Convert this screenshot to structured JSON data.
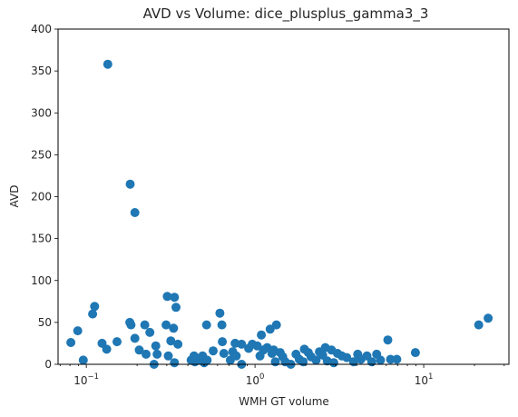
{
  "chart_data": {
    "type": "scatter",
    "title": "AVD vs Volume: dice_plusplus_gamma3_3",
    "xlabel": "WMH GT volume",
    "ylabel": "AVD",
    "xscale": "log",
    "xlim": [
      0.068,
      32
    ],
    "ylim": [
      0,
      400
    ],
    "grid": false,
    "legend": "none",
    "marker_color": "#1f77b4",
    "x_ticks": [
      {
        "value": 0.1,
        "base": "10",
        "exp": "−1"
      },
      {
        "value": 1,
        "base": "10",
        "exp": "0"
      },
      {
        "value": 10,
        "base": "10",
        "exp": "1"
      }
    ],
    "y_ticks": [
      0,
      50,
      100,
      150,
      200,
      250,
      300,
      350,
      400
    ],
    "points": [
      {
        "x": 0.081,
        "y": 26
      },
      {
        "x": 0.089,
        "y": 40
      },
      {
        "x": 0.096,
        "y": 5
      },
      {
        "x": 0.109,
        "y": 60
      },
      {
        "x": 0.112,
        "y": 69
      },
      {
        "x": 0.124,
        "y": 25
      },
      {
        "x": 0.132,
        "y": 18
      },
      {
        "x": 0.134,
        "y": 358
      },
      {
        "x": 0.152,
        "y": 27
      },
      {
        "x": 0.181,
        "y": 50
      },
      {
        "x": 0.182,
        "y": 215
      },
      {
        "x": 0.184,
        "y": 47
      },
      {
        "x": 0.194,
        "y": 181
      },
      {
        "x": 0.194,
        "y": 31
      },
      {
        "x": 0.206,
        "y": 17
      },
      {
        "x": 0.222,
        "y": 47
      },
      {
        "x": 0.226,
        "y": 12
      },
      {
        "x": 0.238,
        "y": 38
      },
      {
        "x": 0.252,
        "y": 0
      },
      {
        "x": 0.258,
        "y": 22
      },
      {
        "x": 0.263,
        "y": 12
      },
      {
        "x": 0.297,
        "y": 47
      },
      {
        "x": 0.302,
        "y": 81
      },
      {
        "x": 0.306,
        "y": 10
      },
      {
        "x": 0.317,
        "y": 28
      },
      {
        "x": 0.333,
        "y": 80
      },
      {
        "x": 0.329,
        "y": 43
      },
      {
        "x": 0.34,
        "y": 68
      },
      {
        "x": 0.333,
        "y": 2
      },
      {
        "x": 0.349,
        "y": 24
      },
      {
        "x": 0.418,
        "y": 5
      },
      {
        "x": 0.435,
        "y": 10
      },
      {
        "x": 0.44,
        "y": 3
      },
      {
        "x": 0.454,
        "y": 7
      },
      {
        "x": 0.48,
        "y": 5
      },
      {
        "x": 0.489,
        "y": 10
      },
      {
        "x": 0.5,
        "y": 2
      },
      {
        "x": 0.516,
        "y": 47
      },
      {
        "x": 0.52,
        "y": 5
      },
      {
        "x": 0.565,
        "y": 16
      },
      {
        "x": 0.619,
        "y": 61
      },
      {
        "x": 0.636,
        "y": 47
      },
      {
        "x": 0.64,
        "y": 27
      },
      {
        "x": 0.654,
        "y": 13
      },
      {
        "x": 0.714,
        "y": 5
      },
      {
        "x": 0.738,
        "y": 15
      },
      {
        "x": 0.762,
        "y": 25
      },
      {
        "x": 0.774,
        "y": 10
      },
      {
        "x": 0.833,
        "y": 24
      },
      {
        "x": 0.833,
        "y": 0
      },
      {
        "x": 0.917,
        "y": 19
      },
      {
        "x": 0.964,
        "y": 24
      },
      {
        "x": 1.03,
        "y": 22
      },
      {
        "x": 1.07,
        "y": 10
      },
      {
        "x": 1.09,
        "y": 35
      },
      {
        "x": 1.12,
        "y": 17
      },
      {
        "x": 1.18,
        "y": 20
      },
      {
        "x": 1.23,
        "y": 42
      },
      {
        "x": 1.26,
        "y": 13
      },
      {
        "x": 1.29,
        "y": 17
      },
      {
        "x": 1.32,
        "y": 3
      },
      {
        "x": 1.34,
        "y": 47
      },
      {
        "x": 1.41,
        "y": 14
      },
      {
        "x": 1.46,
        "y": 9
      },
      {
        "x": 1.51,
        "y": 3
      },
      {
        "x": 1.63,
        "y": 0
      },
      {
        "x": 1.75,
        "y": 12
      },
      {
        "x": 1.83,
        "y": 6
      },
      {
        "x": 1.93,
        "y": 3
      },
      {
        "x": 1.96,
        "y": 18
      },
      {
        "x": 2.07,
        "y": 14
      },
      {
        "x": 2.15,
        "y": 9
      },
      {
        "x": 2.3,
        "y": 5
      },
      {
        "x": 2.41,
        "y": 15
      },
      {
        "x": 2.52,
        "y": 11
      },
      {
        "x": 2.61,
        "y": 20
      },
      {
        "x": 2.68,
        "y": 4
      },
      {
        "x": 2.84,
        "y": 17
      },
      {
        "x": 2.93,
        "y": 2
      },
      {
        "x": 3.08,
        "y": 13
      },
      {
        "x": 3.27,
        "y": 10
      },
      {
        "x": 3.5,
        "y": 8
      },
      {
        "x": 3.84,
        "y": 3
      },
      {
        "x": 4.06,
        "y": 12
      },
      {
        "x": 4.24,
        "y": 6
      },
      {
        "x": 4.61,
        "y": 10
      },
      {
        "x": 4.92,
        "y": 3
      },
      {
        "x": 5.26,
        "y": 12
      },
      {
        "x": 5.54,
        "y": 5
      },
      {
        "x": 6.13,
        "y": 29
      },
      {
        "x": 6.36,
        "y": 6
      },
      {
        "x": 6.93,
        "y": 6
      },
      {
        "x": 8.93,
        "y": 14
      },
      {
        "x": 21.2,
        "y": 47
      },
      {
        "x": 24.1,
        "y": 55
      }
    ]
  }
}
